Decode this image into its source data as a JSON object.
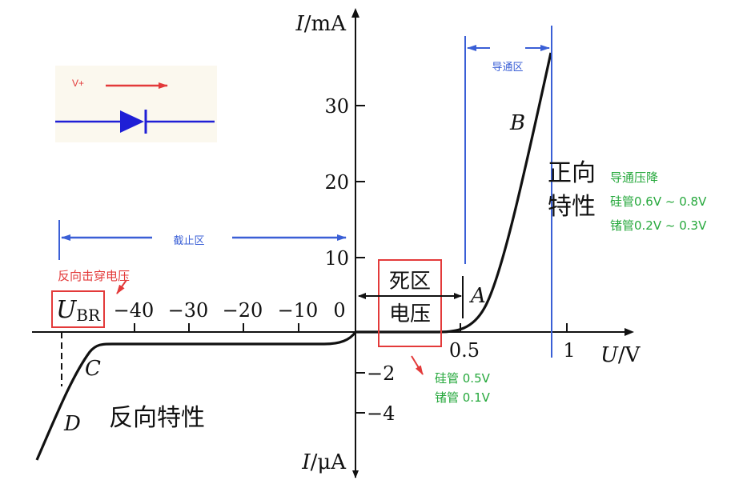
{
  "axes": {
    "y_top_label_var": "I",
    "y_top_label_unit": "/mA",
    "y_bottom_label_var": "I",
    "y_bottom_label_unit": "/μA",
    "x_label_var": "U",
    "x_label_unit": "/V",
    "y_pos_ticks": [
      "10",
      "20",
      "30"
    ],
    "y_neg_ticks": [
      "−2",
      "−4"
    ],
    "x_pos_ticks": [
      "0.5",
      "1"
    ],
    "x_neg_ticks": [
      "−10",
      "−20",
      "−30",
      "−40"
    ],
    "origin": "0"
  },
  "points": {
    "A": "A",
    "B": "B",
    "C": "C",
    "D": "D"
  },
  "ubr": {
    "main": "U",
    "sub": "BR"
  },
  "regions": {
    "forward_line1": "正向",
    "forward_line2": "特性",
    "reverse": "反向特性",
    "dead_zone_line1": "死区",
    "dead_zone_line2": "电压"
  },
  "annotations": {
    "conduction_region": "导通区",
    "cutoff_region": "截止区",
    "breakdown_voltage": "反向击穿电压",
    "drop_title": "导通压降",
    "drop_si": "硅管0.6V ~ 0.8V",
    "drop_ge": "锗管0.2V ~ 0.3V",
    "dead_si": "硅管 0.5V",
    "dead_ge": "锗管 0.1V",
    "v_plus": "V+"
  },
  "colors": {
    "curve": "#111111",
    "annotation_blue": "#3a5fd6",
    "annotation_red": "#e33a3a",
    "annotation_green": "#26a83c",
    "diode": "#1f1fd6"
  }
}
